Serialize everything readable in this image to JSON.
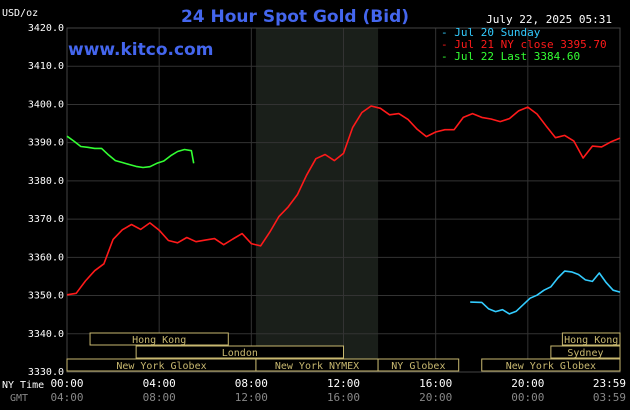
{
  "header": {
    "title": "24 Hour Spot Gold (Bid)",
    "unit": "USD/oz",
    "site": "www.kitco.com",
    "timestamp": "July 22, 2025 05:31"
  },
  "legend": [
    {
      "label": "Jul 20 Sunday",
      "color": "#33ccff"
    },
    {
      "label": "Jul 21 NY close 3395.70",
      "color": "#ff1a1a"
    },
    {
      "label": "Jul 22 Last 3384.60",
      "color": "#33ff33"
    }
  ],
  "footer": {
    "ny_label": "NY Time",
    "gmt_label": "GMT",
    "ny_ticks": [
      "00:00",
      "04:00",
      "08:00",
      "12:00",
      "16:00",
      "20:00",
      "23:59"
    ],
    "gmt_ticks": [
      "04:00",
      "08:00",
      "12:00",
      "16:00",
      "20:00",
      "00:00",
      "03:59"
    ]
  },
  "markets": [
    {
      "label": "Hong Kong",
      "start": 1.0,
      "end": 7.0,
      "row": 0
    },
    {
      "label": "Hong Kong",
      "start": 21.5,
      "end": 24.0,
      "row": 0
    },
    {
      "label": "London",
      "start": 3.0,
      "end": 12.0,
      "row": 1
    },
    {
      "label": "Sydney",
      "start": 21.0,
      "end": 24.0,
      "row": 1
    },
    {
      "label": "New York Globex",
      "start": 0.0,
      "end": 8.2,
      "row": 2
    },
    {
      "label": "New York NYMEX",
      "start": 8.2,
      "end": 13.5,
      "row": 2
    },
    {
      "label": "NY Globex",
      "start": 13.5,
      "end": 17.0,
      "row": 2
    },
    {
      "label": "New York Globex",
      "start": 18.0,
      "end": 24.0,
      "row": 2
    }
  ],
  "colors": {
    "background": "#000000",
    "grid": "#333333",
    "axis_text": "#ffffff",
    "title": "#4466ee",
    "nymex_shade": "#1a1f1a",
    "market_box": "#c8b870"
  },
  "chart_data": {
    "type": "line",
    "xlabel": "NY Time",
    "ylabel": "USD/oz",
    "xlim": [
      0,
      24
    ],
    "ylim": [
      3330,
      3420
    ],
    "yticks": [
      3330,
      3340,
      3350,
      3360,
      3370,
      3380,
      3390,
      3400,
      3410,
      3420
    ],
    "yticklabels": [
      "3330.0",
      "3340.0",
      "3350.0",
      "3360.0",
      "3370.0",
      "3380.0",
      "3390.0",
      "3400.0",
      "3410.0",
      "3420.0"
    ],
    "xticks": [
      0,
      4,
      8,
      12,
      16,
      20,
      24
    ],
    "grid": true,
    "shaded_region": [
      8.2,
      13.5
    ],
    "series": [
      {
        "name": "Jul 20 Sunday",
        "color": "#33ccff",
        "x": [
          17.5,
          18.0,
          18.3,
          18.6,
          18.9,
          19.2,
          19.5,
          19.8,
          20.1,
          20.4,
          20.7,
          21.0,
          21.3,
          21.6,
          21.9,
          22.2,
          22.5,
          22.8,
          23.1,
          23.4,
          23.7,
          24.0
        ],
        "y": [
          3348.3,
          3348.2,
          3346.5,
          3345.8,
          3346.3,
          3345.2,
          3345.9,
          3347.6,
          3349.3,
          3350.1,
          3351.4,
          3352.3,
          3354.6,
          3356.4,
          3356.2,
          3355.5,
          3354.1,
          3353.7,
          3355.9,
          3353.4,
          3351.4,
          3350.9
        ]
      },
      {
        "name": "Jul 21 NY close 3395.70",
        "color": "#ff1a1a",
        "x": [
          0.0,
          0.4,
          0.8,
          1.2,
          1.6,
          2.0,
          2.4,
          2.8,
          3.2,
          3.6,
          4.0,
          4.4,
          4.8,
          5.2,
          5.6,
          6.0,
          6.4,
          6.8,
          7.2,
          7.6,
          8.0,
          8.4,
          8.8,
          9.2,
          9.6,
          10.0,
          10.4,
          10.8,
          11.2,
          11.6,
          12.0,
          12.4,
          12.8,
          13.2,
          13.6,
          14.0,
          14.4,
          14.8,
          15.2,
          15.6,
          16.0,
          16.4,
          16.8,
          17.2,
          17.6,
          18.0,
          18.4,
          18.8,
          19.2,
          19.6,
          20.0,
          20.4,
          20.8,
          21.2,
          21.6,
          22.0,
          22.4,
          22.8,
          23.2,
          23.6,
          24.0
        ],
        "y": [
          3350.2,
          3350.6,
          3353.8,
          3356.5,
          3358.3,
          3364.7,
          3367.2,
          3368.6,
          3367.3,
          3369.0,
          3367.1,
          3364.4,
          3363.8,
          3365.2,
          3364.1,
          3364.5,
          3364.9,
          3363.3,
          3364.8,
          3366.2,
          3363.6,
          3363.0,
          3366.6,
          3370.7,
          3373.2,
          3376.4,
          3381.5,
          3385.8,
          3386.9,
          3385.3,
          3387.2,
          3394.0,
          3397.9,
          3399.6,
          3399.0,
          3397.3,
          3397.6,
          3396.1,
          3393.5,
          3391.6,
          3392.8,
          3393.4,
          3393.4,
          3396.6,
          3397.6,
          3396.6,
          3396.2,
          3395.5,
          3396.3,
          3398.3,
          3399.3,
          3397.5,
          3394.3,
          3391.3,
          3391.9,
          3390.4,
          3386.0,
          3389.1,
          3388.9,
          3390.2,
          3391.2
        ]
      },
      {
        "name": "Jul 22 Last 3384.60",
        "color": "#33ff33",
        "x": [
          0.0,
          0.3,
          0.6,
          0.9,
          1.2,
          1.5,
          1.8,
          2.1,
          2.4,
          2.7,
          3.0,
          3.3,
          3.6,
          3.9,
          4.2,
          4.5,
          4.8,
          5.1,
          5.4,
          5.5
        ],
        "y": [
          3391.7,
          3390.4,
          3389.0,
          3388.8,
          3388.5,
          3388.5,
          3386.8,
          3385.3,
          3384.8,
          3384.3,
          3383.8,
          3383.5,
          3383.7,
          3384.6,
          3385.2,
          3386.6,
          3387.7,
          3388.2,
          3387.9,
          3384.6
        ]
      }
    ]
  }
}
